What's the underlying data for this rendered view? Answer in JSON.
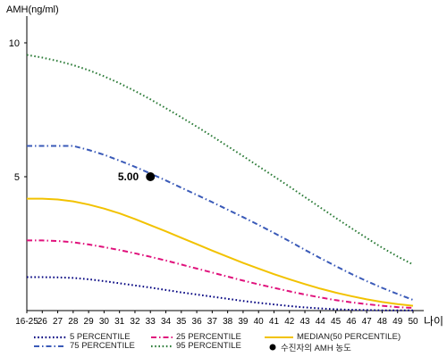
{
  "chart_data": {
    "type": "line",
    "ylabel": "AMH(ng/ml)",
    "xlabel": "나이",
    "ylim": [
      0,
      11
    ],
    "yticks": [
      5,
      10
    ],
    "ytick_labels": [
      "5",
      "10"
    ],
    "categories": [
      "16-25",
      "26",
      "27",
      "28",
      "29",
      "30",
      "31",
      "32",
      "33",
      "34",
      "35",
      "36",
      "37",
      "38",
      "39",
      "40",
      "41",
      "42",
      "43",
      "44",
      "45",
      "46",
      "47",
      "48",
      "49",
      "50"
    ],
    "series": [
      {
        "name": "5 PERCENTILE",
        "color": "#00007f",
        "dash": "1.6 2.6",
        "values": [
          1.25,
          1.25,
          1.24,
          1.22,
          1.17,
          1.1,
          1.02,
          0.94,
          0.86,
          0.77,
          0.68,
          0.6,
          0.52,
          0.44,
          0.36,
          0.29,
          0.23,
          0.17,
          0.12,
          0.08,
          0.05,
          0.03,
          0.02,
          0.01,
          0.01,
          0.01
        ]
      },
      {
        "name": "25 PERCENTILE",
        "color": "#e0127c",
        "dash": "6 3 1.5 3",
        "values": [
          2.62,
          2.62,
          2.6,
          2.55,
          2.47,
          2.37,
          2.26,
          2.14,
          2.01,
          1.87,
          1.72,
          1.57,
          1.42,
          1.27,
          1.12,
          0.98,
          0.85,
          0.72,
          0.6,
          0.49,
          0.39,
          0.31,
          0.24,
          0.18,
          0.13,
          0.1
        ]
      },
      {
        "name": "MEDIAN(50 PERCENTILE)",
        "color": "#f2c200",
        "dash": "",
        "values": [
          4.18,
          4.18,
          4.15,
          4.08,
          3.96,
          3.81,
          3.63,
          3.42,
          3.19,
          2.96,
          2.72,
          2.48,
          2.24,
          2.01,
          1.78,
          1.57,
          1.36,
          1.17,
          0.99,
          0.82,
          0.67,
          0.54,
          0.42,
          0.32,
          0.24,
          0.18
        ]
      },
      {
        "name": "75 PERCENTILE",
        "color": "#3a5ab8",
        "dash": "6 3 1.5 3",
        "values": [
          6.15,
          6.15,
          6.15,
          6.15,
          6.0,
          5.82,
          5.6,
          5.37,
          5.12,
          4.86,
          4.59,
          4.32,
          4.05,
          3.77,
          3.49,
          3.2,
          2.9,
          2.59,
          2.27,
          1.96,
          1.66,
          1.37,
          1.1,
          0.85,
          0.62,
          0.4
        ]
      },
      {
        "name": "95 PERCENTILE",
        "color": "#2e7d3a",
        "dash": "1.6 2.6",
        "values": [
          9.55,
          9.45,
          9.32,
          9.17,
          8.98,
          8.75,
          8.49,
          8.2,
          7.89,
          7.56,
          7.22,
          6.87,
          6.51,
          6.14,
          5.77,
          5.39,
          5.01,
          4.63,
          4.24,
          3.85,
          3.46,
          3.08,
          2.71,
          2.35,
          2.02,
          1.72
        ]
      }
    ],
    "marker": {
      "name": "수진자의 AMH 농도",
      "x": "33",
      "y": 5.0,
      "label": "5.00",
      "color": "#000000"
    },
    "grid": false
  },
  "legend": {
    "p5": "5 PERCENTILE",
    "p25": "25 PERCENTILE",
    "median": "MEDIAN(50 PERCENTILE)",
    "p75": "75 PERCENTILE",
    "p95": "95 PERCENTILE",
    "marker": "수진자의 AMH 농도"
  }
}
